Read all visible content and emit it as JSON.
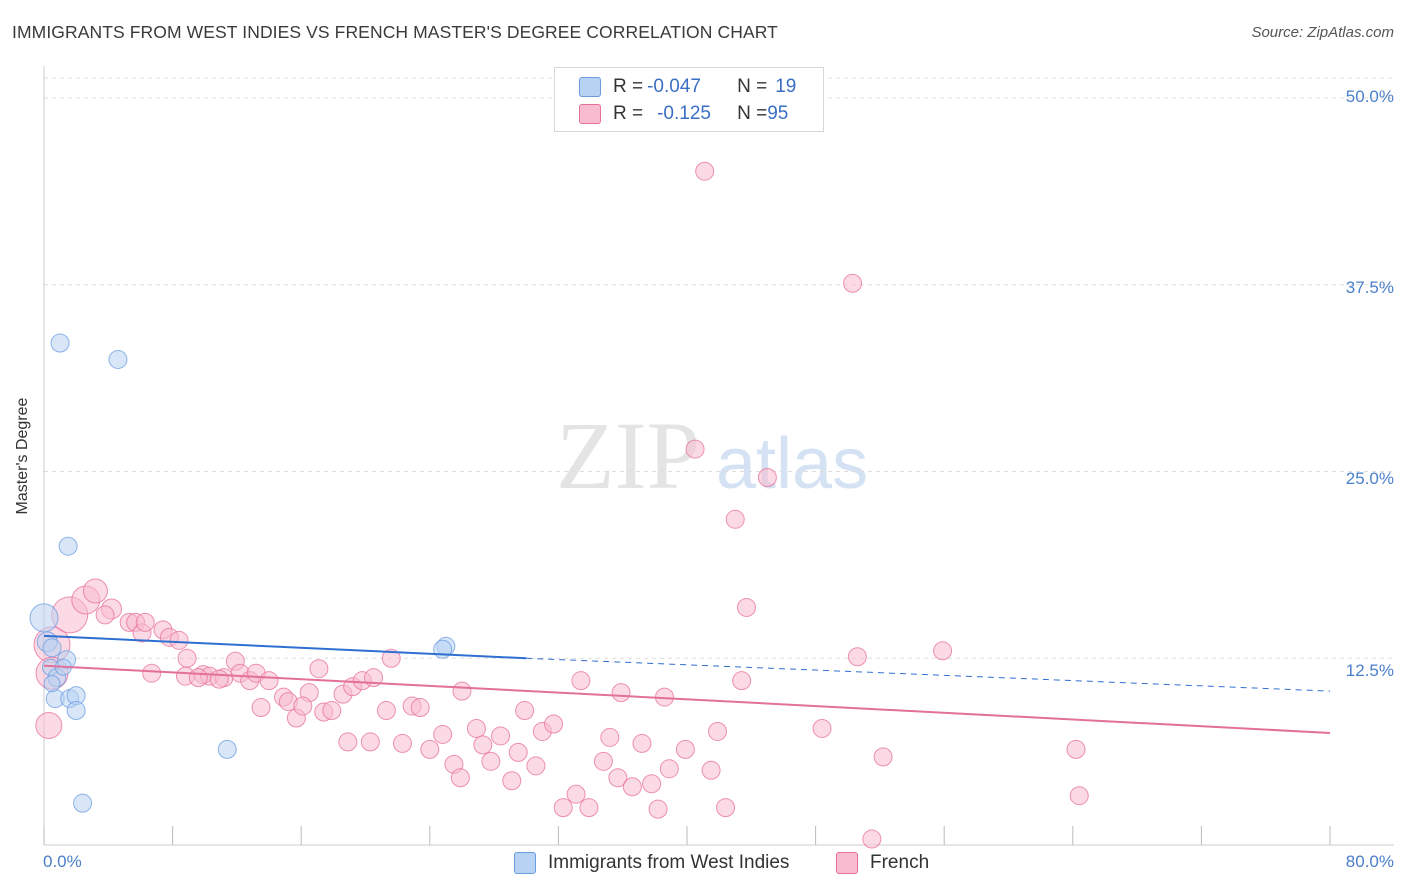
{
  "header": {
    "title": "IMMIGRANTS FROM WEST INDIES VS FRENCH MASTER'S DEGREE CORRELATION CHART",
    "source": "Source: ZipAtlas.com"
  },
  "watermark": {
    "zip": "ZIP",
    "atlas": "atlas"
  },
  "legend": {
    "row1": {
      "r_label": "R = ",
      "r_value": "-0.047",
      "n_label": "N = ",
      "n_value": "19"
    },
    "row2": {
      "r_label": "R = ",
      "r_value": "-0.125",
      "n_label": "N = ",
      "n_value": "95"
    }
  },
  "bottom_legend": {
    "series1": "Immigrants from West Indies",
    "series2": "French"
  },
  "colors": {
    "blue": "#6a9ce0",
    "blue_fill": "#b8d2f3",
    "pink": "#e76f9b",
    "pink_fill": "#f7bcd0",
    "grid": "#dddddd",
    "tick_text": "#4a7fc9"
  },
  "chart_data": {
    "type": "scatter",
    "title": "IMMIGRANTS FROM WEST INDIES VS FRENCH MASTER'S DEGREE CORRELATION CHART",
    "ylabel": "Master's Degree",
    "xlim": [
      0,
      80
    ],
    "ylim": [
      0,
      50
    ],
    "x_tick_labels": [
      "0.0%",
      "80.0%"
    ],
    "y_ticks": [
      12.5,
      25.0,
      37.5,
      50.0
    ],
    "y_tick_labels": [
      "12.5%",
      "25.0%",
      "37.5%",
      "50.0%"
    ],
    "grid": true,
    "legend_position": "top-center",
    "series": [
      {
        "name": "Immigrants from West Indies",
        "color": "#6a9ce0",
        "r": -0.047,
        "n": 19,
        "trend": {
          "x": [
            0,
            30
          ],
          "y": [
            14.0,
            12.5
          ],
          "dashed_to_x": 80,
          "dashed_end_y": 10.3
        },
        "points": [
          {
            "x": 0.0,
            "y": 15.2,
            "s": 14
          },
          {
            "x": 0.2,
            "y": 13.6,
            "s": 10
          },
          {
            "x": 0.5,
            "y": 13.2,
            "s": 9
          },
          {
            "x": 0.4,
            "y": 11.9,
            "s": 8
          },
          {
            "x": 0.8,
            "y": 11.2,
            "s": 9
          },
          {
            "x": 1.4,
            "y": 12.4,
            "s": 9
          },
          {
            "x": 1.0,
            "y": 33.6,
            "s": 9
          },
          {
            "x": 4.6,
            "y": 32.5,
            "s": 9
          },
          {
            "x": 1.5,
            "y": 20.0,
            "s": 9
          },
          {
            "x": 0.7,
            "y": 9.8,
            "s": 9
          },
          {
            "x": 1.6,
            "y": 9.8,
            "s": 9
          },
          {
            "x": 2.0,
            "y": 10.0,
            "s": 9
          },
          {
            "x": 2.0,
            "y": 9.0,
            "s": 9
          },
          {
            "x": 0.5,
            "y": 10.8,
            "s": 8
          },
          {
            "x": 11.4,
            "y": 6.4,
            "s": 9
          },
          {
            "x": 2.4,
            "y": 2.8,
            "s": 9
          },
          {
            "x": 25.0,
            "y": 13.3,
            "s": 9
          },
          {
            "x": 24.8,
            "y": 13.1,
            "s": 9
          },
          {
            "x": 1.2,
            "y": 11.9,
            "s": 8
          }
        ]
      },
      {
        "name": "French",
        "color": "#e76f9b",
        "r": -0.125,
        "n": 95,
        "trend": {
          "x": [
            0,
            80
          ],
          "y": [
            12.0,
            7.5
          ]
        },
        "points": [
          {
            "x": 0.5,
            "y": 13.4,
            "s": 18
          },
          {
            "x": 1.6,
            "y": 15.4,
            "s": 18
          },
          {
            "x": 2.6,
            "y": 16.4,
            "s": 14
          },
          {
            "x": 3.2,
            "y": 17.0,
            "s": 12
          },
          {
            "x": 0.5,
            "y": 11.5,
            "s": 16
          },
          {
            "x": 0.3,
            "y": 8.0,
            "s": 13
          },
          {
            "x": 4.2,
            "y": 15.8,
            "s": 10
          },
          {
            "x": 5.3,
            "y": 14.9,
            "s": 9
          },
          {
            "x": 5.7,
            "y": 14.9,
            "s": 9
          },
          {
            "x": 6.1,
            "y": 14.2,
            "s": 9
          },
          {
            "x": 6.3,
            "y": 14.9,
            "s": 9
          },
          {
            "x": 7.4,
            "y": 14.4,
            "s": 9
          },
          {
            "x": 7.8,
            "y": 13.9,
            "s": 9
          },
          {
            "x": 8.4,
            "y": 13.7,
            "s": 9
          },
          {
            "x": 6.7,
            "y": 11.5,
            "s": 9
          },
          {
            "x": 8.9,
            "y": 12.5,
            "s": 9
          },
          {
            "x": 8.8,
            "y": 11.3,
            "s": 9
          },
          {
            "x": 9.9,
            "y": 11.4,
            "s": 9
          },
          {
            "x": 10.3,
            "y": 11.3,
            "s": 9
          },
          {
            "x": 11.2,
            "y": 11.2,
            "s": 9
          },
          {
            "x": 11.9,
            "y": 12.3,
            "s": 9
          },
          {
            "x": 12.2,
            "y": 11.5,
            "s": 9
          },
          {
            "x": 12.8,
            "y": 11.0,
            "s": 9
          },
          {
            "x": 13.2,
            "y": 11.5,
            "s": 9
          },
          {
            "x": 14.0,
            "y": 11.0,
            "s": 9
          },
          {
            "x": 13.5,
            "y": 9.2,
            "s": 9
          },
          {
            "x": 14.9,
            "y": 9.9,
            "s": 9
          },
          {
            "x": 15.2,
            "y": 9.6,
            "s": 9
          },
          {
            "x": 15.7,
            "y": 8.5,
            "s": 9
          },
          {
            "x": 16.5,
            "y": 10.2,
            "s": 9
          },
          {
            "x": 17.1,
            "y": 11.8,
            "s": 9
          },
          {
            "x": 17.4,
            "y": 8.9,
            "s": 9
          },
          {
            "x": 17.9,
            "y": 9.0,
            "s": 9
          },
          {
            "x": 18.6,
            "y": 10.1,
            "s": 9
          },
          {
            "x": 19.2,
            "y": 10.6,
            "s": 9
          },
          {
            "x": 19.8,
            "y": 11.0,
            "s": 9
          },
          {
            "x": 20.5,
            "y": 11.2,
            "s": 9
          },
          {
            "x": 21.6,
            "y": 12.5,
            "s": 9
          },
          {
            "x": 21.3,
            "y": 9.0,
            "s": 9
          },
          {
            "x": 22.9,
            "y": 9.3,
            "s": 9
          },
          {
            "x": 23.4,
            "y": 9.2,
            "s": 9
          },
          {
            "x": 18.9,
            "y": 6.9,
            "s": 9
          },
          {
            "x": 20.3,
            "y": 6.9,
            "s": 9
          },
          {
            "x": 22.3,
            "y": 6.8,
            "s": 9
          },
          {
            "x": 24.0,
            "y": 6.4,
            "s": 9
          },
          {
            "x": 24.8,
            "y": 7.4,
            "s": 9
          },
          {
            "x": 25.5,
            "y": 5.4,
            "s": 9
          },
          {
            "x": 25.9,
            "y": 4.5,
            "s": 9
          },
          {
            "x": 26.0,
            "y": 10.3,
            "s": 9
          },
          {
            "x": 26.9,
            "y": 7.8,
            "s": 9
          },
          {
            "x": 27.3,
            "y": 6.7,
            "s": 9
          },
          {
            "x": 27.8,
            "y": 5.6,
            "s": 9
          },
          {
            "x": 28.4,
            "y": 7.3,
            "s": 9
          },
          {
            "x": 29.1,
            "y": 4.3,
            "s": 9
          },
          {
            "x": 29.5,
            "y": 6.2,
            "s": 9
          },
          {
            "x": 29.9,
            "y": 9.0,
            "s": 9
          },
          {
            "x": 30.6,
            "y": 5.3,
            "s": 9
          },
          {
            "x": 31.0,
            "y": 7.6,
            "s": 9
          },
          {
            "x": 31.7,
            "y": 8.1,
            "s": 9
          },
          {
            "x": 32.3,
            "y": 2.5,
            "s": 9
          },
          {
            "x": 33.1,
            "y": 3.4,
            "s": 9
          },
          {
            "x": 33.4,
            "y": 11.0,
            "s": 9
          },
          {
            "x": 33.9,
            "y": 2.5,
            "s": 9
          },
          {
            "x": 34.8,
            "y": 5.6,
            "s": 9
          },
          {
            "x": 35.2,
            "y": 7.2,
            "s": 9
          },
          {
            "x": 35.7,
            "y": 4.5,
            "s": 9
          },
          {
            "x": 35.9,
            "y": 10.2,
            "s": 9
          },
          {
            "x": 36.6,
            "y": 3.9,
            "s": 9
          },
          {
            "x": 37.2,
            "y": 6.8,
            "s": 9
          },
          {
            "x": 37.8,
            "y": 4.1,
            "s": 9
          },
          {
            "x": 38.2,
            "y": 2.4,
            "s": 9
          },
          {
            "x": 38.6,
            "y": 9.9,
            "s": 9
          },
          {
            "x": 38.9,
            "y": 5.1,
            "s": 9
          },
          {
            "x": 39.9,
            "y": 6.4,
            "s": 9
          },
          {
            "x": 40.5,
            "y": 26.5,
            "s": 9
          },
          {
            "x": 41.1,
            "y": 45.1,
            "s": 9
          },
          {
            "x": 41.5,
            "y": 5.0,
            "s": 9
          },
          {
            "x": 41.9,
            "y": 7.6,
            "s": 9
          },
          {
            "x": 42.4,
            "y": 2.5,
            "s": 9
          },
          {
            "x": 43.0,
            "y": 21.8,
            "s": 9
          },
          {
            "x": 43.4,
            "y": 11.0,
            "s": 9
          },
          {
            "x": 43.7,
            "y": 15.9,
            "s": 9
          },
          {
            "x": 45.0,
            "y": 24.6,
            "s": 9
          },
          {
            "x": 48.4,
            "y": 7.8,
            "s": 9
          },
          {
            "x": 50.3,
            "y": 37.6,
            "s": 9
          },
          {
            "x": 50.6,
            "y": 12.6,
            "s": 9
          },
          {
            "x": 51.5,
            "y": 0.4,
            "s": 9
          },
          {
            "x": 52.2,
            "y": 5.9,
            "s": 9
          },
          {
            "x": 55.9,
            "y": 13.0,
            "s": 9
          },
          {
            "x": 64.2,
            "y": 6.4,
            "s": 9
          },
          {
            "x": 64.4,
            "y": 3.3,
            "s": 9
          },
          {
            "x": 10.9,
            "y": 11.1,
            "s": 9
          },
          {
            "x": 9.6,
            "y": 11.2,
            "s": 9
          },
          {
            "x": 16.1,
            "y": 9.3,
            "s": 9
          },
          {
            "x": 3.8,
            "y": 15.4,
            "s": 9
          }
        ]
      }
    ]
  }
}
